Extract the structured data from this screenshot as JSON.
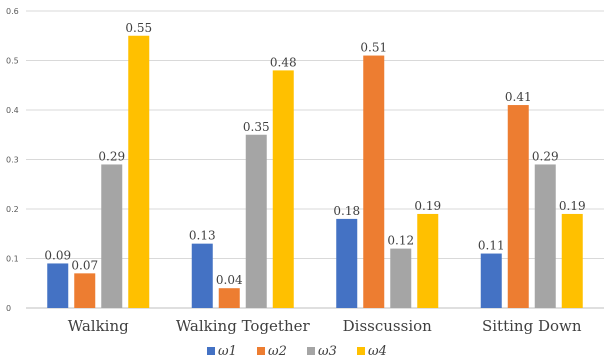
{
  "chart_data": {
    "type": "bar",
    "title": "",
    "xlabel": "",
    "ylabel": "",
    "ylim": [
      0,
      0.6
    ],
    "yticks": [
      "0",
      "0.1",
      "0.2",
      "0.3",
      "0.4",
      "0.5",
      "0.6"
    ],
    "grid": true,
    "legend_position": "bottom",
    "categories": [
      "Walking",
      "Walking Together",
      "Disscussion",
      "Sitting Down"
    ],
    "series": [
      {
        "name": "ω1",
        "color": "#4472C4",
        "values": [
          0.09,
          0.13,
          0.18,
          0.11
        ],
        "labels": [
          "0.09",
          "0.13",
          "0.18",
          "0.11"
        ]
      },
      {
        "name": "ω2",
        "color": "#ED7D31",
        "values": [
          0.07,
          0.04,
          0.51,
          0.41
        ],
        "labels": [
          "0.07",
          "0.04",
          "0.51",
          "0.41"
        ]
      },
      {
        "name": "ω3",
        "color": "#A5A5A5",
        "values": [
          0.29,
          0.35,
          0.12,
          0.29
        ],
        "labels": [
          "0.29",
          "0.35",
          "0.12",
          "0.29"
        ]
      },
      {
        "name": "ω4",
        "color": "#FFC000",
        "values": [
          0.55,
          0.48,
          0.19,
          0.19
        ],
        "labels": [
          "0.55",
          "0.48",
          "0.19",
          "0.19"
        ]
      }
    ]
  }
}
